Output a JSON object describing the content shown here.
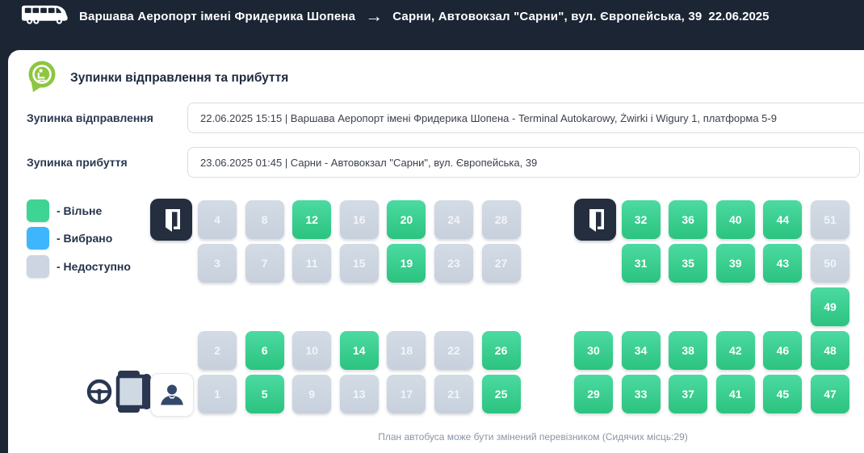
{
  "header": {
    "route_from": "Варшава Аеропорт імені Фридерика Шопена",
    "arrow": "→",
    "route_to": "Сарни, Автовокзал \"Сарни\", вул. Європейська, 39",
    "date": "22.06.2025"
  },
  "panel": {
    "title": "Зупинки відправлення та прибуття",
    "departure": {
      "label": "Зупинка відправлення",
      "value": "22.06.2025 15:15 | Варшава Аеропорт імені Фридерика Шопена - Terminal Autokarowy, Żwirki i Wigury 1, платформа 5-9"
    },
    "arrival": {
      "label": "Зупинка прибуття",
      "value": "23.06.2025 01:45 | Сарни - Автовокзал \"Сарни\", вул. Європейська, 39"
    }
  },
  "legend": [
    {
      "status": "available",
      "label": "- Вільне",
      "color": "#3ed493"
    },
    {
      "status": "selected",
      "label": "- Вибрано",
      "color": "#3db6fe"
    },
    {
      "status": "unavailable",
      "label": "- Недоступно",
      "color": "#ccd5e1"
    }
  ],
  "colors": {
    "header_bg": "#1b2534",
    "available_green": "#3ed493",
    "selected_blue": "#3db6fe",
    "unavailable_gray": "#ccd5e1",
    "door_dark": "#242e3f"
  },
  "seat_map": {
    "note": "План автобуса може бути змінений перевізником (Сидячих місць:29)",
    "seats_available_count": 29,
    "blocks": [
      {
        "name": "left",
        "seats": [
          {
            "num": 4,
            "status": "unavailable",
            "row": 0,
            "col": 0
          },
          {
            "num": 8,
            "status": "unavailable",
            "row": 0,
            "col": 1
          },
          {
            "num": 12,
            "status": "available",
            "row": 0,
            "col": 2
          },
          {
            "num": 16,
            "status": "unavailable",
            "row": 0,
            "col": 3
          },
          {
            "num": 20,
            "status": "available",
            "row": 0,
            "col": 4
          },
          {
            "num": 24,
            "status": "unavailable",
            "row": 0,
            "col": 5
          },
          {
            "num": 28,
            "status": "unavailable",
            "row": 0,
            "col": 6
          },
          {
            "num": 3,
            "status": "unavailable",
            "row": 1,
            "col": 0
          },
          {
            "num": 7,
            "status": "unavailable",
            "row": 1,
            "col": 1
          },
          {
            "num": 11,
            "status": "unavailable",
            "row": 1,
            "col": 2
          },
          {
            "num": 15,
            "status": "unavailable",
            "row": 1,
            "col": 3
          },
          {
            "num": 19,
            "status": "available",
            "row": 1,
            "col": 4
          },
          {
            "num": 23,
            "status": "unavailable",
            "row": 1,
            "col": 5
          },
          {
            "num": 27,
            "status": "unavailable",
            "row": 1,
            "col": 6
          },
          {
            "num": 2,
            "status": "unavailable",
            "row": 3,
            "col": 0
          },
          {
            "num": 6,
            "status": "available",
            "row": 3,
            "col": 1
          },
          {
            "num": 10,
            "status": "unavailable",
            "row": 3,
            "col": 2
          },
          {
            "num": 14,
            "status": "available",
            "row": 3,
            "col": 3
          },
          {
            "num": 18,
            "status": "unavailable",
            "row": 3,
            "col": 4
          },
          {
            "num": 22,
            "status": "unavailable",
            "row": 3,
            "col": 5
          },
          {
            "num": 26,
            "status": "available",
            "row": 3,
            "col": 6
          },
          {
            "num": 1,
            "status": "unavailable",
            "row": 4,
            "col": 0
          },
          {
            "num": 5,
            "status": "available",
            "row": 4,
            "col": 1
          },
          {
            "num": 9,
            "status": "unavailable",
            "row": 4,
            "col": 2
          },
          {
            "num": 13,
            "status": "unavailable",
            "row": 4,
            "col": 3
          },
          {
            "num": 17,
            "status": "unavailable",
            "row": 4,
            "col": 4
          },
          {
            "num": 21,
            "status": "unavailable",
            "row": 4,
            "col": 5
          },
          {
            "num": 25,
            "status": "available",
            "row": 4,
            "col": 6
          }
        ]
      },
      {
        "name": "right",
        "seats": [
          {
            "num": 32,
            "status": "available",
            "row": 0,
            "col": 1
          },
          {
            "num": 36,
            "status": "available",
            "row": 0,
            "col": 2
          },
          {
            "num": 40,
            "status": "available",
            "row": 0,
            "col": 3
          },
          {
            "num": 44,
            "status": "available",
            "row": 0,
            "col": 4
          },
          {
            "num": 51,
            "status": "unavailable",
            "row": 0,
            "col": 5
          },
          {
            "num": 31,
            "status": "available",
            "row": 1,
            "col": 1
          },
          {
            "num": 35,
            "status": "available",
            "row": 1,
            "col": 2
          },
          {
            "num": 39,
            "status": "available",
            "row": 1,
            "col": 3
          },
          {
            "num": 43,
            "status": "available",
            "row": 1,
            "col": 4
          },
          {
            "num": 50,
            "status": "unavailable",
            "row": 1,
            "col": 5
          },
          {
            "num": 49,
            "status": "available",
            "row": 2,
            "col": 5
          },
          {
            "num": 30,
            "status": "available",
            "row": 3,
            "col": 0
          },
          {
            "num": 34,
            "status": "available",
            "row": 3,
            "col": 1
          },
          {
            "num": 38,
            "status": "available",
            "row": 3,
            "col": 2
          },
          {
            "num": 42,
            "status": "available",
            "row": 3,
            "col": 3
          },
          {
            "num": 46,
            "status": "available",
            "row": 3,
            "col": 4
          },
          {
            "num": 48,
            "status": "available",
            "row": 3,
            "col": 5
          },
          {
            "num": 29,
            "status": "available",
            "row": 4,
            "col": 0
          },
          {
            "num": 33,
            "status": "available",
            "row": 4,
            "col": 1
          },
          {
            "num": 37,
            "status": "available",
            "row": 4,
            "col": 2
          },
          {
            "num": 41,
            "status": "available",
            "row": 4,
            "col": 3
          },
          {
            "num": 45,
            "status": "available",
            "row": 4,
            "col": 4
          },
          {
            "num": 47,
            "status": "available",
            "row": 4,
            "col": 5
          }
        ]
      }
    ]
  }
}
